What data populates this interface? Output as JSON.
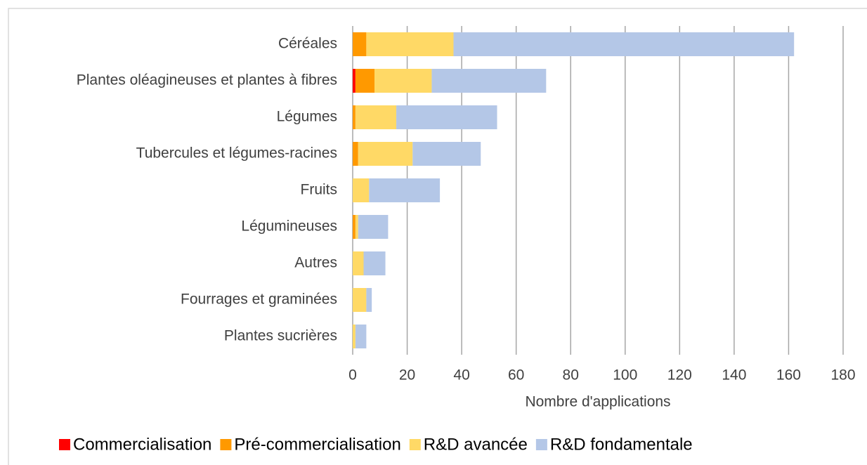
{
  "chart_data": {
    "type": "stacked-barh",
    "categories": [
      "Céréales",
      "Plantes oléagineuses et plantes à fibres",
      "Légumes",
      "Tubercules et légumes-racines",
      "Fruits",
      "Légumineuses",
      "Autres",
      "Fourrages et graminées",
      "Plantes sucrières"
    ],
    "series": [
      {
        "name": "Commercialisation",
        "color": "#ff0000",
        "values": [
          0,
          1,
          0,
          0,
          0,
          0,
          0,
          0,
          0
        ]
      },
      {
        "name": "Pré-commercialisation",
        "color": "#ff9900",
        "values": [
          5,
          7,
          1,
          2,
          0,
          1,
          0,
          0,
          0
        ]
      },
      {
        "name": "R&D avancée",
        "color": "#ffd966",
        "values": [
          32,
          21,
          15,
          20,
          6,
          1,
          4,
          5,
          1
        ]
      },
      {
        "name": "R&D fondamentale",
        "color": "#b4c7e7",
        "values": [
          125,
          42,
          37,
          25,
          26,
          11,
          8,
          2,
          4
        ]
      }
    ],
    "xlabel": "Nombre d'applications",
    "xlim": [
      0,
      180
    ],
    "xticks": [
      0,
      20,
      40,
      60,
      80,
      100,
      120,
      140,
      160,
      180
    ],
    "grid": true,
    "legend": "bottom"
  }
}
